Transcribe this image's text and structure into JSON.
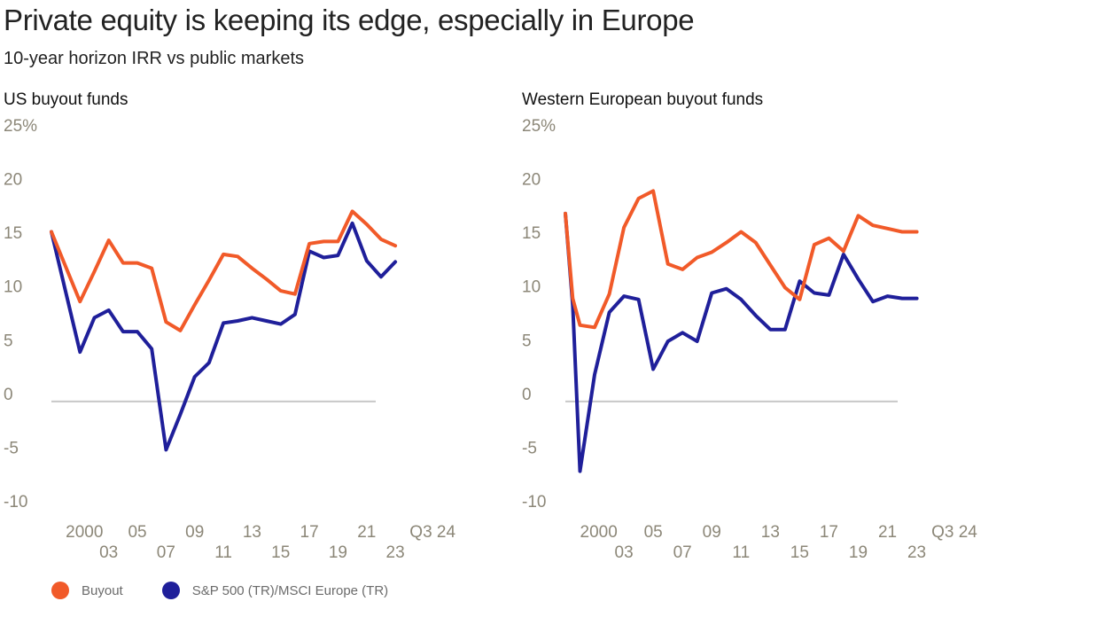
{
  "title": "Private equity is keeping its edge, especially in Europe",
  "subtitle": "10-year horizon IRR vs public markets",
  "colors": {
    "buyout": "#f15a29",
    "public": "#1f1f9a",
    "zero_line": "#c8c8c8",
    "tick": "#8c8778"
  },
  "legend": [
    {
      "label": "Buyout",
      "color": "#f15a29"
    },
    {
      "label": "S&P 500 (TR)/MSCI Europe (TR)",
      "color": "#1f1f9a"
    }
  ],
  "chart_data": [
    {
      "type": "line",
      "title": "US buyout funds",
      "ylim": [
        -10,
        25
      ],
      "yticks": [
        "25%",
        "20",
        "15",
        "10",
        "5",
        "0",
        "-5",
        "-10"
      ],
      "xlim": [
        1999,
        2024.6
      ],
      "xticks": [
        {
          "label": "2000",
          "x": 2000,
          "row": 1
        },
        {
          "label": "03",
          "x": 2003,
          "row": 2
        },
        {
          "label": "05",
          "x": 2005,
          "row": 1
        },
        {
          "label": "07",
          "x": 2007,
          "row": 2
        },
        {
          "label": "09",
          "x": 2009,
          "row": 1
        },
        {
          "label": "11",
          "x": 2011,
          "row": 2
        },
        {
          "label": "13",
          "x": 2013,
          "row": 1
        },
        {
          "label": "15",
          "x": 2015,
          "row": 2
        },
        {
          "label": "17",
          "x": 2017,
          "row": 1
        },
        {
          "label": "19",
          "x": 2019,
          "row": 2
        },
        {
          "label": "21",
          "x": 2021,
          "row": 1
        },
        {
          "label": "23",
          "x": 2023,
          "row": 2
        },
        {
          "label": "Q3 24",
          "x": 2024,
          "row": 1
        }
      ],
      "x": [
        1999,
        2001,
        2002,
        2003,
        2004,
        2005,
        2006,
        2007,
        2008,
        2009,
        2010,
        2011,
        2012,
        2013,
        2014,
        2015,
        2016,
        2017,
        2018,
        2019,
        2020,
        2021,
        2022,
        2023
      ],
      "series": [
        {
          "name": "Buyout",
          "color": "#f15a29",
          "values": [
            15.8,
            9.3,
            12.1,
            15.0,
            12.9,
            12.9,
            12.4,
            7.4,
            6.6,
            9.0,
            11.3,
            13.7,
            13.5,
            12.4,
            11.4,
            10.3,
            10.0,
            14.7,
            14.9,
            14.9,
            17.7,
            16.5,
            15.1,
            14.5
          ]
        },
        {
          "name": "S&P 500 (TR)/MSCI Europe (TR)",
          "color": "#1f1f9a",
          "values": [
            15.8,
            4.6,
            7.8,
            8.5,
            6.5,
            6.5,
            4.9,
            -4.5,
            -1.2,
            2.3,
            3.6,
            7.3,
            7.5,
            7.8,
            7.5,
            7.2,
            8.1,
            14.0,
            13.4,
            13.6,
            16.6,
            13.1,
            11.6,
            13.0
          ]
        }
      ]
    },
    {
      "type": "line",
      "title": "Western European buyout funds",
      "ylim": [
        -10,
        25
      ],
      "yticks": [
        "25%",
        "20",
        "15",
        "10",
        "5",
        "0",
        "-5",
        "-10"
      ],
      "xlim": [
        1999,
        2024.6
      ],
      "xticks": [
        {
          "label": "2000",
          "x": 2000,
          "row": 1
        },
        {
          "label": "03",
          "x": 2003,
          "row": 2
        },
        {
          "label": "05",
          "x": 2005,
          "row": 1
        },
        {
          "label": "07",
          "x": 2007,
          "row": 2
        },
        {
          "label": "09",
          "x": 2009,
          "row": 1
        },
        {
          "label": "11",
          "x": 2011,
          "row": 2
        },
        {
          "label": "13",
          "x": 2013,
          "row": 1
        },
        {
          "label": "15",
          "x": 2015,
          "row": 2
        },
        {
          "label": "17",
          "x": 2017,
          "row": 1
        },
        {
          "label": "19",
          "x": 2019,
          "row": 2
        },
        {
          "label": "21",
          "x": 2021,
          "row": 1
        },
        {
          "label": "23",
          "x": 2023,
          "row": 2
        },
        {
          "label": "Q3 24",
          "x": 2024,
          "row": 1
        }
      ],
      "x": [
        1999,
        1999.5,
        2000,
        2001,
        2002,
        2003,
        2004,
        2005,
        2006,
        2007,
        2008,
        2009,
        2010,
        2011,
        2012,
        2013,
        2014,
        2015,
        2016,
        2017,
        2018,
        2019,
        2020,
        2021,
        2022,
        2023
      ],
      "series": [
        {
          "name": "Buyout",
          "color": "#f15a29",
          "values": [
            17.5,
            9.6,
            7.1,
            6.9,
            10.0,
            16.2,
            18.9,
            19.6,
            12.8,
            12.3,
            13.4,
            13.9,
            14.8,
            15.8,
            14.8,
            12.7,
            10.6,
            9.5,
            14.6,
            15.2,
            14.0,
            17.3,
            16.4,
            16.1,
            15.8,
            15.8
          ]
        },
        {
          "name": "S&P 500 (TR)/MSCI Europe (TR)",
          "color": "#1f1f9a",
          "values": [
            17.5,
            9.0,
            -6.5,
            2.5,
            8.3,
            9.8,
            9.5,
            3.0,
            5.6,
            6.4,
            5.6,
            10.1,
            10.5,
            9.5,
            8.0,
            6.7,
            6.7,
            11.2,
            10.1,
            9.9,
            13.7,
            11.4,
            9.3,
            9.8,
            9.6,
            9.6
          ]
        }
      ]
    }
  ]
}
